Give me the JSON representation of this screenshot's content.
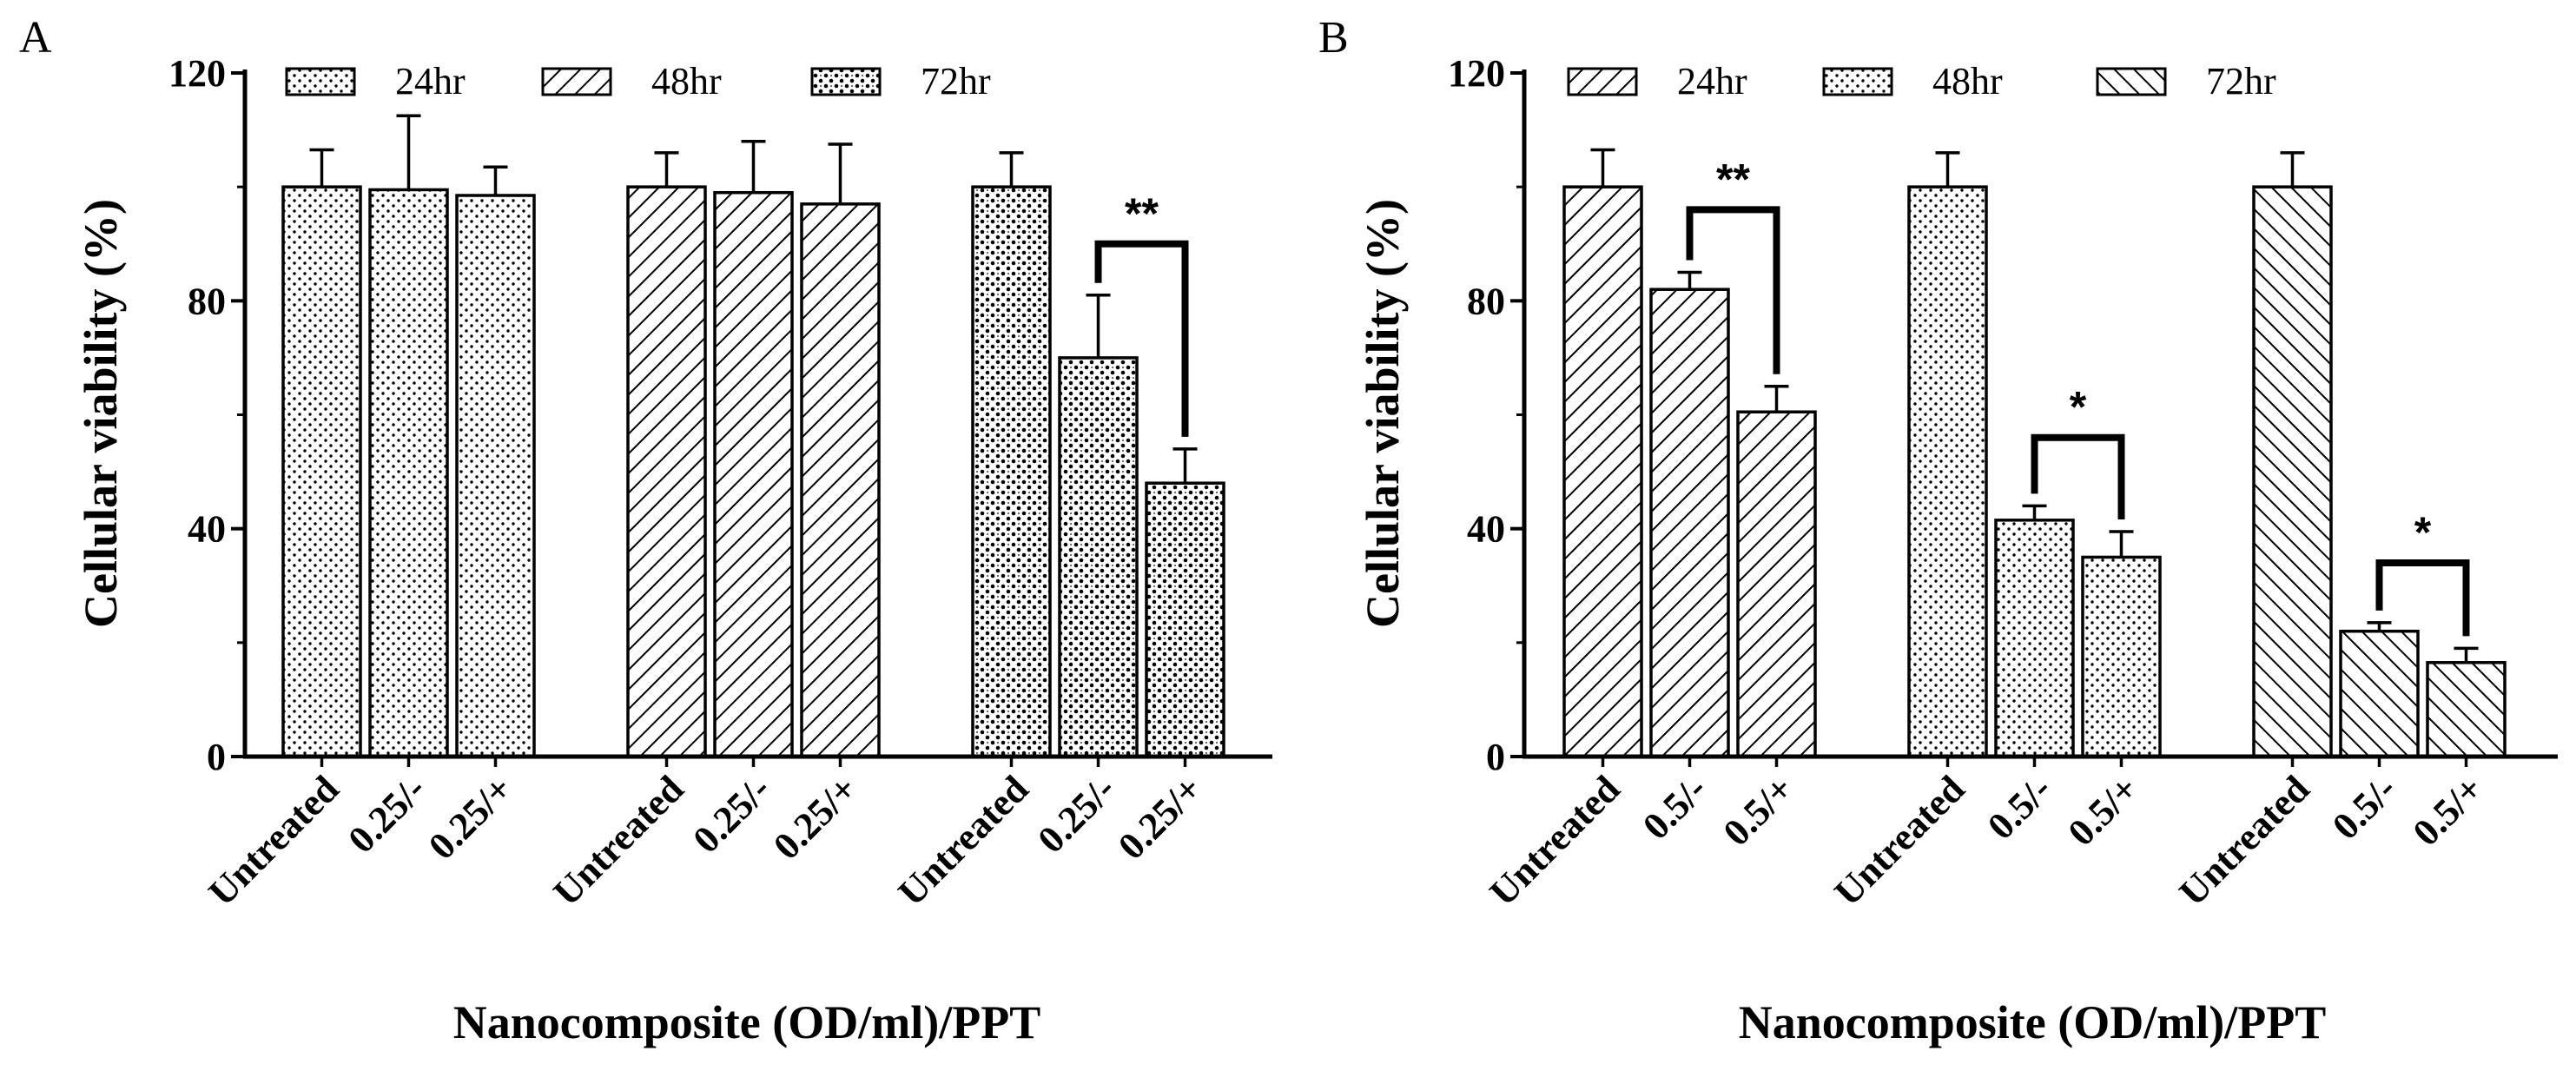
{
  "chart_data": [
    {
      "type": "bar",
      "panel_label": "A",
      "title": "",
      "ylabel": "Cellular viability (%)",
      "xlabel": "Nanocomposite (OD/ml)/PPT",
      "ylim": [
        0,
        120
      ],
      "yticks": [
        "0",
        "40",
        "80",
        "120"
      ],
      "grid": false,
      "legend_position": "top",
      "series": [
        {
          "name": "24hr",
          "pattern": "dots",
          "categories": [
            "Untreated",
            "0.25/-",
            "0.25/+"
          ],
          "values": [
            100,
            99.5,
            98.5
          ],
          "errors": [
            6.5,
            13,
            5
          ]
        },
        {
          "name": "48hr",
          "pattern": "hatch-forward",
          "categories": [
            "Untreated",
            "0.25/-",
            "0.25/+"
          ],
          "values": [
            100,
            99,
            97
          ],
          "errors": [
            6,
            9,
            10.5
          ]
        },
        {
          "name": "72hr",
          "pattern": "dense-dots",
          "categories": [
            "Untreated",
            "0.25/-",
            "0.25/+"
          ],
          "values": [
            100,
            70,
            48
          ],
          "errors": [
            6,
            11,
            6
          ]
        }
      ],
      "annotations": [
        {
          "text": "**",
          "series": 2,
          "from_bar": 1,
          "to_bar": 2,
          "bracket_y": 90
        }
      ]
    },
    {
      "type": "bar",
      "panel_label": "B",
      "title": "",
      "ylabel": "Cellular viability (%)",
      "xlabel": "Nanocomposite (OD/ml)/PPT",
      "ylim": [
        0,
        120
      ],
      "yticks": [
        "0",
        "40",
        "80",
        "120"
      ],
      "grid": false,
      "legend_position": "top",
      "series": [
        {
          "name": "24hr",
          "pattern": "hatch-forward",
          "categories": [
            "Untreated",
            "0.5/-",
            "0.5/+"
          ],
          "values": [
            100,
            82,
            60.5
          ],
          "errors": [
            6.5,
            3,
            4.5
          ]
        },
        {
          "name": "48hr",
          "pattern": "dots",
          "categories": [
            "Untreated",
            "0.5/-",
            "0.5/+"
          ],
          "values": [
            100,
            41.5,
            35
          ],
          "errors": [
            6,
            2.5,
            4.5
          ]
        },
        {
          "name": "72hr",
          "pattern": "hatch-backward",
          "categories": [
            "Untreated",
            "0.5/-",
            "0.5/+"
          ],
          "values": [
            100,
            22,
            16.5
          ],
          "errors": [
            6,
            1.5,
            2.5
          ]
        }
      ],
      "annotations": [
        {
          "text": "**",
          "series": 0,
          "from_bar": 1,
          "to_bar": 2,
          "bracket_y": 96
        },
        {
          "text": "*",
          "series": 1,
          "from_bar": 1,
          "to_bar": 2,
          "bracket_y": 56
        },
        {
          "text": "*",
          "series": 2,
          "from_bar": 1,
          "to_bar": 2,
          "bracket_y": 34
        }
      ]
    }
  ]
}
